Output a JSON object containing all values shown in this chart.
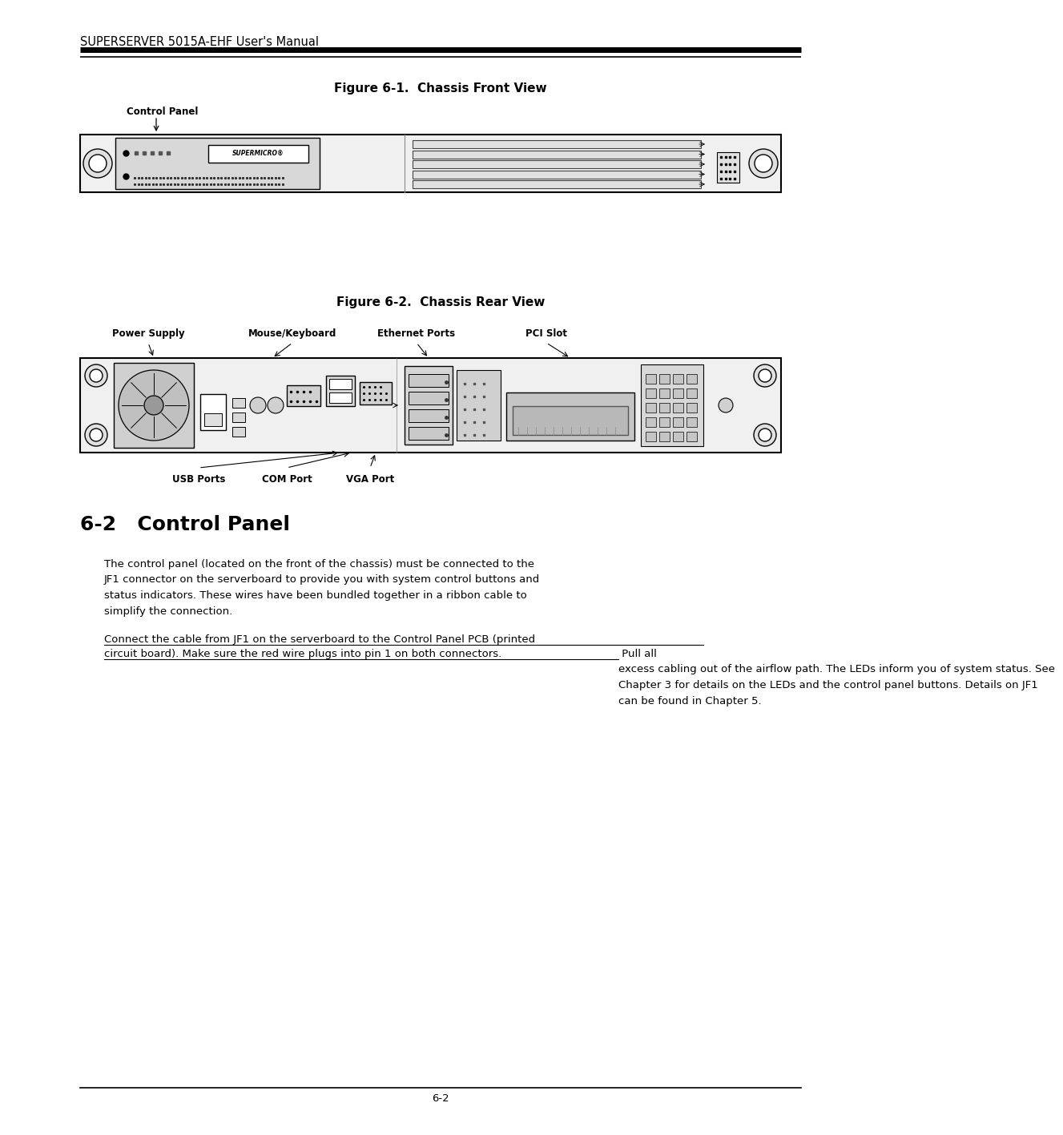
{
  "bg_color": "#ffffff",
  "text_color": "#000000",
  "header_text": "SUPERSERVER 5015A-EHF User's Manual",
  "fig1_title": "Figure 6-1.  Chassis Front View",
  "fig2_title": "Figure 6-2.  Chassis Rear View",
  "section_title": "6-2   Control Panel",
  "control_panel_label": "Control Panel",
  "rear_labels_top": [
    [
      "Power Supply",
      175
    ],
    [
      "Mouse/Keyboard",
      355
    ],
    [
      "Ethernet Ports",
      510
    ],
    [
      "PCI Slot",
      672
    ]
  ],
  "rear_labels_bottom": [
    [
      "USB Ports",
      238
    ],
    [
      "COM Port",
      348
    ],
    [
      "VGA Port",
      452
    ]
  ],
  "paragraph1": "The control panel (located on the front of the chassis) must be connected to the\nJF1 connector on the serverboard to provide you with system control buttons and\nstatus indicators. These wires have been bundled together in a ribbon cable to\nsimplify the connection.",
  "paragraph2_underlined_line1": "Connect the cable from JF1 on the serverboard to the Control Panel PCB (printed",
  "paragraph2_underlined_line2": "circuit board). Make sure the red wire plugs into pin 1 on both connectors.",
  "paragraph2_normal": " Pull all\nexcess cabling out of the airflow path. The LEDs inform you of system status. See\nChapter 3 for details on the LEDs and the control panel buttons. Details on JF1\ncan be found in Chapter 5.",
  "footer_text": "6-2"
}
